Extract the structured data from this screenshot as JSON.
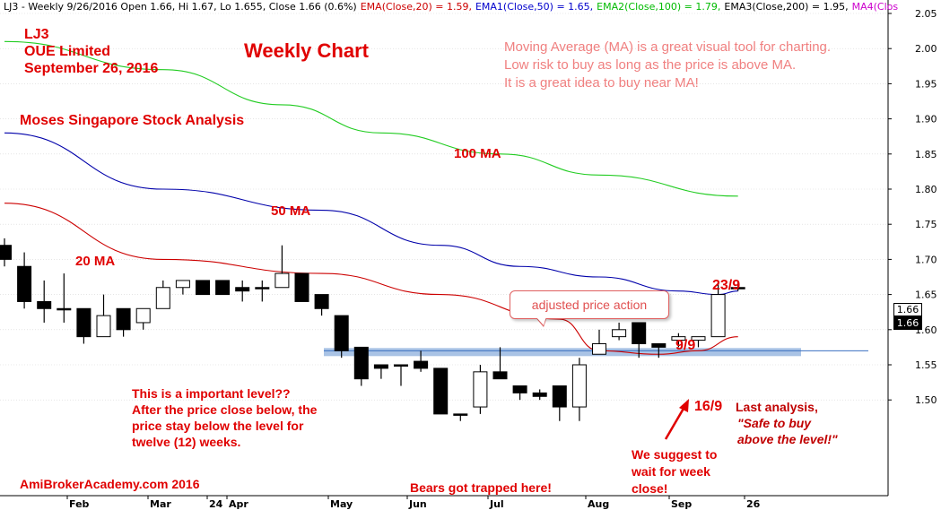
{
  "header": {
    "prefix": "LJ3 - Weekly 9/26/2016 Open 1.66, Hi 1.67, Lo 1.655, Close 1.66 (0.6%)",
    "ema20": "EMA(Close,20) = 1.59,",
    "ema50": "EMA1(Close,50) = 1.65,",
    "ema100": "EMA2(Close,100) = 1.79,",
    "ema200": "EMA3(Close,200) = 1.95,",
    "ma4": "MA4(Clos",
    "colors": {
      "text": "#000000",
      "ema20": "#cc0000",
      "ema50": "#0000cc",
      "ema100": "#00bb00",
      "ema200": "#000000",
      "ma4": "#cc00cc"
    }
  },
  "annotations": {
    "ticker": "LJ3",
    "company": "OUE Limited",
    "date": "September 26, 2016",
    "title": "Weekly Chart",
    "analysis_by": "Moses Singapore Stock Analysis",
    "ma_note_1": "Moving Average (MA) is a great visual tool for charting.",
    "ma_note_2": "Low risk to buy as long as the price is above MA.",
    "ma_note_3": "It is a great idea to buy near MA!",
    "label_100ma": "100 MA",
    "label_50ma": "50 MA",
    "label_20ma": "20 MA",
    "label_23_9": "23/9",
    "label_9_9": "9/9",
    "label_16_9": "16/9",
    "callout": "adjusted price action",
    "important_1": "This is a important level??",
    "important_2": "After the price close below, the",
    "important_3": "price stay below the level for",
    "important_4": "twelve (12) weeks.",
    "last_analysis_1": "Last analysis,",
    "last_analysis_2": "\"Safe to buy",
    "last_analysis_3": "above the level!\"",
    "suggest_1": "We suggest to",
    "suggest_2": "wait for week",
    "suggest_3": "close!",
    "bears": "Bears got trapped here!",
    "website": "AmiBrokerAcademy.com  2016"
  },
  "price_tags": [
    "1.66",
    "1.66"
  ],
  "colors": {
    "ema20": "#cc0000",
    "ema50": "#0000aa",
    "ema100": "#22cc22",
    "support_band": "#9ab8e0",
    "support_line": "#3a6fc0",
    "candle_up": "#ffffff",
    "candle_down": "#000000",
    "annotation": "#e00000",
    "note": "#f08080"
  },
  "chart_data": {
    "type": "candlestick",
    "symbol": "LJ3",
    "period": "Weekly",
    "ylim": [
      1.44,
      2.08
    ],
    "y_ticks": [
      "1.50",
      "1.55",
      "1.60",
      "1.65",
      "1.70",
      "1.75",
      "1.80",
      "1.85",
      "1.90",
      "1.95",
      "2.00",
      "2.05"
    ],
    "x_ticks": [
      "Feb",
      "Mar",
      "24",
      "Apr",
      "May",
      "Jun",
      "Jul",
      "Aug",
      "Sep",
      "26"
    ],
    "support_level": 1.57,
    "candles": [
      {
        "o": 1.72,
        "h": 1.73,
        "l": 1.69,
        "c": 1.7
      },
      {
        "o": 1.69,
        "h": 1.71,
        "l": 1.63,
        "c": 1.64
      },
      {
        "o": 1.64,
        "h": 1.67,
        "l": 1.61,
        "c": 1.63
      },
      {
        "o": 1.63,
        "h": 1.68,
        "l": 1.61,
        "c": 1.63
      },
      {
        "o": 1.63,
        "h": 1.63,
        "l": 1.58,
        "c": 1.59
      },
      {
        "o": 1.59,
        "h": 1.65,
        "l": 1.59,
        "c": 1.62
      },
      {
        "o": 1.63,
        "h": 1.63,
        "l": 1.59,
        "c": 1.6
      },
      {
        "o": 1.61,
        "h": 1.63,
        "l": 1.6,
        "c": 1.63
      },
      {
        "o": 1.63,
        "h": 1.67,
        "l": 1.63,
        "c": 1.66
      },
      {
        "o": 1.66,
        "h": 1.67,
        "l": 1.65,
        "c": 1.67
      },
      {
        "o": 1.67,
        "h": 1.67,
        "l": 1.65,
        "c": 1.65
      },
      {
        "o": 1.67,
        "h": 1.67,
        "l": 1.65,
        "c": 1.65
      },
      {
        "o": 1.66,
        "h": 1.67,
        "l": 1.64,
        "c": 1.655
      },
      {
        "o": 1.66,
        "h": 1.67,
        "l": 1.64,
        "c": 1.66
      },
      {
        "o": 1.66,
        "h": 1.72,
        "l": 1.66,
        "c": 1.68
      },
      {
        "o": 1.68,
        "h": 1.68,
        "l": 1.64,
        "c": 1.64
      },
      {
        "o": 1.65,
        "h": 1.65,
        "l": 1.62,
        "c": 1.63
      },
      {
        "o": 1.62,
        "h": 1.62,
        "l": 1.56,
        "c": 1.57
      },
      {
        "o": 1.575,
        "h": 1.575,
        "l": 1.52,
        "c": 1.53
      },
      {
        "o": 1.55,
        "h": 1.55,
        "l": 1.53,
        "c": 1.545
      },
      {
        "o": 1.55,
        "h": 1.55,
        "l": 1.52,
        "c": 1.55
      },
      {
        "o": 1.555,
        "h": 1.57,
        "l": 1.54,
        "c": 1.545
      },
      {
        "o": 1.545,
        "h": 1.545,
        "l": 1.48,
        "c": 1.48
      },
      {
        "o": 1.48,
        "h": 1.48,
        "l": 1.47,
        "c": 1.48
      },
      {
        "o": 1.49,
        "h": 1.55,
        "l": 1.48,
        "c": 1.54
      },
      {
        "o": 1.54,
        "h": 1.575,
        "l": 1.53,
        "c": 1.53
      },
      {
        "o": 1.52,
        "h": 1.52,
        "l": 1.5,
        "c": 1.51
      },
      {
        "o": 1.51,
        "h": 1.515,
        "l": 1.5,
        "c": 1.505
      },
      {
        "o": 1.52,
        "h": 1.52,
        "l": 1.47,
        "c": 1.49
      },
      {
        "o": 1.49,
        "h": 1.56,
        "l": 1.47,
        "c": 1.55
      },
      {
        "o": 1.565,
        "h": 1.6,
        "l": 1.565,
        "c": 1.58
      },
      {
        "o": 1.59,
        "h": 1.61,
        "l": 1.585,
        "c": 1.6
      },
      {
        "o": 1.61,
        "h": 1.61,
        "l": 1.56,
        "c": 1.58
      },
      {
        "o": 1.58,
        "h": 1.58,
        "l": 1.56,
        "c": 1.575
      },
      {
        "o": 1.585,
        "h": 1.595,
        "l": 1.575,
        "c": 1.59
      },
      {
        "o": 1.585,
        "h": 1.59,
        "l": 1.575,
        "c": 1.59
      },
      {
        "o": 1.59,
        "h": 1.67,
        "l": 1.59,
        "c": 1.65
      },
      {
        "o": 1.66,
        "h": 1.67,
        "l": 1.655,
        "c": 1.66
      }
    ],
    "series": [
      {
        "name": "EMA(Close,20)",
        "points": [
          [
            0,
            1.78
          ],
          [
            8,
            1.7
          ],
          [
            16,
            1.68
          ],
          [
            22,
            1.65
          ],
          [
            28,
            1.615
          ],
          [
            30,
            1.57
          ],
          [
            33,
            1.565
          ],
          [
            35,
            1.57
          ],
          [
            37,
            1.59
          ]
        ]
      },
      {
        "name": "EMA1(Close,50)",
        "points": [
          [
            0,
            1.88
          ],
          [
            8,
            1.8
          ],
          [
            16,
            1.77
          ],
          [
            22,
            1.72
          ],
          [
            26,
            1.69
          ],
          [
            30,
            1.675
          ],
          [
            34,
            1.655
          ],
          [
            36,
            1.65
          ],
          [
            37,
            1.655
          ]
        ]
      },
      {
        "name": "EMA2(Close,100)",
        "points": [
          [
            0,
            2.01
          ],
          [
            8,
            1.97
          ],
          [
            14,
            1.92
          ],
          [
            19,
            1.88
          ],
          [
            25,
            1.85
          ],
          [
            30,
            1.82
          ],
          [
            37,
            1.79
          ]
        ]
      }
    ]
  }
}
